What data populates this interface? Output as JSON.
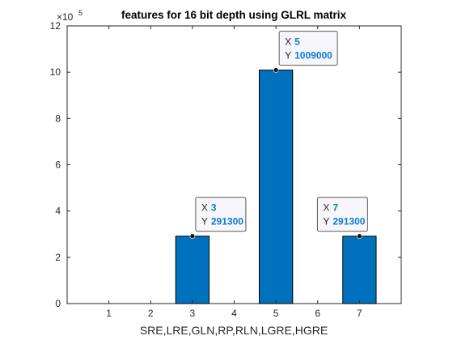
{
  "chart_data": {
    "type": "bar",
    "title": "features for 16 bit depth using GLRL matrix",
    "xlabel": "SRE,LRE,GLN,RP,RLN,LGRE,HGRE",
    "ylabel": "",
    "x": [
      3,
      5,
      7
    ],
    "values": [
      291300,
      1009000,
      291300
    ],
    "xlim": [
      0,
      8
    ],
    "ylim": [
      0,
      1200000
    ],
    "xticks": [
      "1",
      "2",
      "3",
      "4",
      "5",
      "6",
      "7"
    ],
    "yticks": [
      "0",
      "2",
      "4",
      "6",
      "8",
      "10",
      "12"
    ],
    "y_exponent_label": "×10",
    "y_exponent_power": "5",
    "bar_color": "#0072bd",
    "grid": false,
    "datatips": [
      {
        "x_label": "X",
        "x_value": "3",
        "y_label": "Y",
        "y_value": "291300"
      },
      {
        "x_label": "X",
        "x_value": "5",
        "y_label": "Y",
        "y_value": "1009000"
      },
      {
        "x_label": "X",
        "x_value": "7",
        "y_label": "Y",
        "y_value": "291300"
      }
    ]
  }
}
